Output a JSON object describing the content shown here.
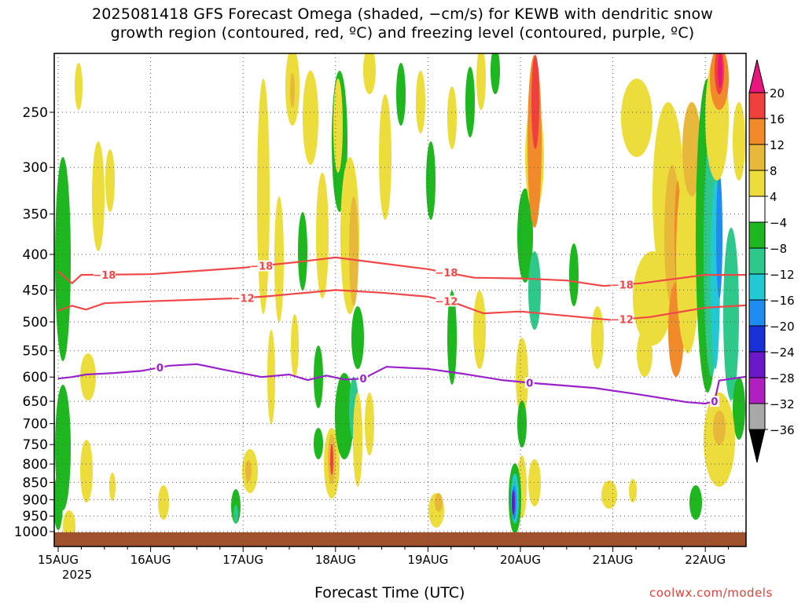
{
  "chart_data": {
    "type": "heatmap",
    "title_lines": [
      "2025081418 GFS Forecast Omega (shaded, −cm/s) for KEWB with dendritic snow",
      "growth region (contoured, red, ºC) and freezing level (contoured, purple, ºC)"
    ],
    "xlabel": "Forecast Time (UTC)",
    "x_ticks": [
      "15AUG",
      "16AUG",
      "17AUG",
      "18AUG",
      "19AUG",
      "20AUG",
      "21AUG",
      "22AUG"
    ],
    "x_year": "2025",
    "y_ticks": [
      250,
      300,
      350,
      400,
      450,
      500,
      550,
      600,
      650,
      700,
      750,
      800,
      850,
      900,
      950,
      1000
    ],
    "y_axis": "pressure (hPa), log scale, inverted",
    "ylim": [
      200,
      1025
    ],
    "colorbar": {
      "labels": [
        "20",
        "16",
        "12",
        "8",
        "4",
        "−4",
        "−8",
        "−12",
        "−16",
        "−20",
        "−24",
        "−28",
        "−32",
        "−36"
      ],
      "colors": [
        "#e8157d",
        "#f0403c",
        "#f08a2a",
        "#e8b83a",
        "#ecdc3c",
        "#ffffff",
        "#1fb71f",
        "#2ec88a",
        "#22c8d4",
        "#1e8cf0",
        "#1a30d8",
        "#6a18c8",
        "#b020c0",
        "#a8a8a8",
        "#000000"
      ]
    },
    "contours": [
      {
        "label": "−18",
        "color": "#f04848",
        "points": [
          [
            0,
            423
          ],
          [
            0.15,
            440
          ],
          [
            0.25,
            428
          ],
          [
            1,
            427
          ],
          [
            2,
            418
          ],
          [
            2.6,
            410
          ],
          [
            3.0,
            404
          ],
          [
            3.5,
            412
          ],
          [
            4.0,
            420
          ],
          [
            4.5,
            432
          ],
          [
            5.0,
            433
          ],
          [
            5.5,
            436
          ],
          [
            5.9,
            444
          ],
          [
            6.3,
            440
          ],
          [
            7.0,
            428
          ],
          [
            7.6,
            428
          ]
        ],
        "labels_at": [
          0.5,
          2.2,
          4.2,
          6.1
        ]
      },
      {
        "label": "−12",
        "color": "#f04848",
        "points": [
          [
            0,
            482
          ],
          [
            0.15,
            474
          ],
          [
            0.3,
            480
          ],
          [
            0.5,
            470
          ],
          [
            1.0,
            467
          ],
          [
            2.0,
            462
          ],
          [
            2.3,
            459
          ],
          [
            2.6,
            455
          ],
          [
            3.0,
            450
          ],
          [
            3.5,
            454
          ],
          [
            4.0,
            460
          ],
          [
            4.3,
            470
          ],
          [
            4.6,
            486
          ],
          [
            5.0,
            483
          ],
          [
            5.5,
            490
          ],
          [
            6.0,
            497
          ],
          [
            6.4,
            492
          ],
          [
            7.0,
            477
          ],
          [
            7.6,
            472
          ]
        ],
        "labels_at": [
          2.0,
          4.2,
          6.1
        ]
      },
      {
        "label": "0",
        "color": "#9822c8",
        "points": [
          [
            0,
            603
          ],
          [
            0.15,
            600
          ],
          [
            0.3,
            595
          ],
          [
            0.6,
            592
          ],
          [
            0.9,
            588
          ],
          [
            1.2,
            578
          ],
          [
            1.5,
            575
          ],
          [
            1.8,
            586
          ],
          [
            2.2,
            600
          ],
          [
            2.5,
            595
          ],
          [
            2.7,
            606
          ],
          [
            2.9,
            597
          ],
          [
            3.1,
            605
          ],
          [
            3.3,
            603
          ],
          [
            3.55,
            580
          ],
          [
            4.0,
            584
          ],
          [
            4.4,
            594
          ],
          [
            4.8,
            606
          ],
          [
            5.2,
            613
          ],
          [
            5.8,
            622
          ],
          [
            6.3,
            636
          ],
          [
            6.8,
            652
          ],
          [
            7.0,
            655
          ],
          [
            7.1,
            650
          ],
          [
            7.15,
            607
          ],
          [
            7.6,
            595
          ],
          [
            7.7,
            602
          ],
          [
            7.9,
            602
          ]
        ],
        "labels_at": [
          1.1,
          3.3,
          5.1,
          7.1
        ]
      }
    ]
  },
  "credit": "coolwx.com/models"
}
